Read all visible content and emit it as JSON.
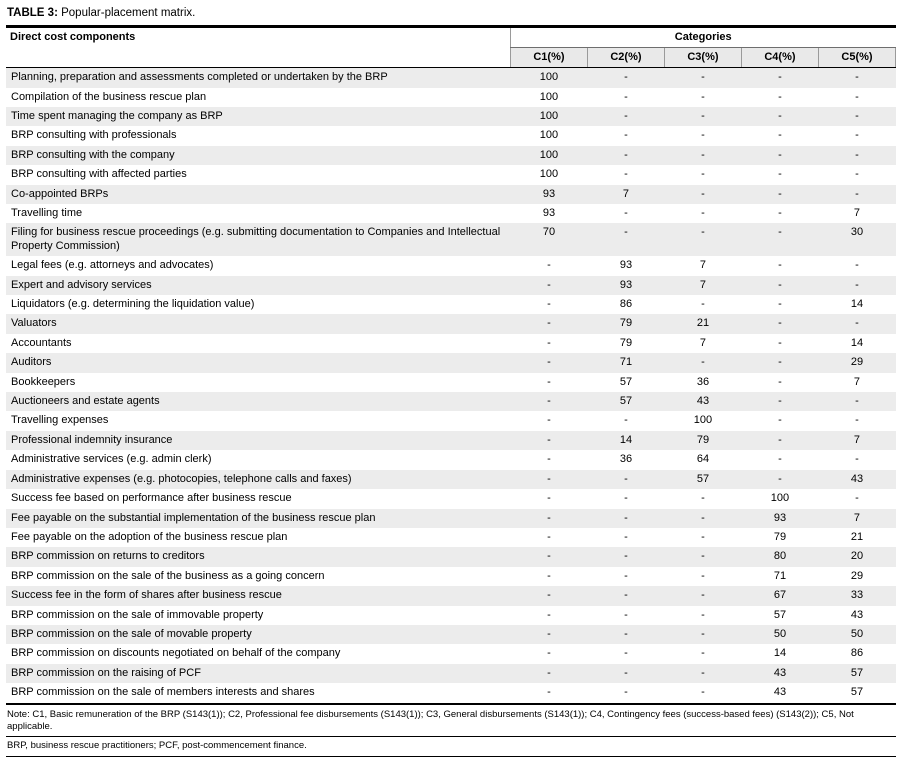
{
  "table": {
    "title_label": "TABLE 3:",
    "title_text": " Popular-placement matrix.",
    "col_header_left": "Direct cost components",
    "col_group_header": "Categories",
    "columns": [
      "C1(%)",
      "C2(%)",
      "C3(%)",
      "C4(%)",
      "C5(%)"
    ],
    "rows": [
      {
        "label": "Planning, preparation and assessments completed or undertaken by the BRP",
        "values": [
          "100",
          "-",
          "-",
          "-",
          "-"
        ]
      },
      {
        "label": "Compilation of the business rescue plan",
        "values": [
          "100",
          "-",
          "-",
          "-",
          "-"
        ]
      },
      {
        "label": "Time spent managing the company as BRP",
        "values": [
          "100",
          "-",
          "-",
          "-",
          "-"
        ]
      },
      {
        "label": "BRP consulting with professionals",
        "values": [
          "100",
          "-",
          "-",
          "-",
          "-"
        ]
      },
      {
        "label": "BRP consulting with the company",
        "values": [
          "100",
          "-",
          "-",
          "-",
          "-"
        ]
      },
      {
        "label": "BRP consulting with affected parties",
        "values": [
          "100",
          "-",
          "-",
          "-",
          "-"
        ]
      },
      {
        "label": "Co-appointed BRPs",
        "values": [
          "93",
          "7",
          "-",
          "-",
          "-"
        ]
      },
      {
        "label": "Travelling time",
        "values": [
          "93",
          "-",
          "-",
          "-",
          "7"
        ]
      },
      {
        "label": "Filing for business rescue proceedings (e.g. submitting documentation to Companies and Intellectual Property Commission)",
        "values": [
          "70",
          "-",
          "-",
          "-",
          "30"
        ]
      },
      {
        "label": "Legal fees (e.g. attorneys and advocates)",
        "values": [
          "-",
          "93",
          "7",
          "-",
          "-"
        ]
      },
      {
        "label": "Expert and advisory services",
        "values": [
          "-",
          "93",
          "7",
          "-",
          "-"
        ]
      },
      {
        "label": "Liquidators (e.g. determining the liquidation value)",
        "values": [
          "-",
          "86",
          "-",
          "-",
          "14"
        ]
      },
      {
        "label": "Valuators",
        "values": [
          "-",
          "79",
          "21",
          "-",
          "-"
        ]
      },
      {
        "label": "Accountants",
        "values": [
          "-",
          "79",
          "7",
          "-",
          "14"
        ]
      },
      {
        "label": "Auditors",
        "values": [
          "-",
          "71",
          "-",
          "-",
          "29"
        ]
      },
      {
        "label": "Bookkeepers",
        "values": [
          "-",
          "57",
          "36",
          "-",
          "7"
        ]
      },
      {
        "label": "Auctioneers and estate agents",
        "values": [
          "-",
          "57",
          "43",
          "-",
          "-"
        ]
      },
      {
        "label": "Travelling expenses",
        "values": [
          "-",
          "-",
          "100",
          "-",
          "-"
        ]
      },
      {
        "label": "Professional indemnity insurance",
        "values": [
          "-",
          "14",
          "79",
          "-",
          "7"
        ]
      },
      {
        "label": "Administrative services (e.g. admin clerk)",
        "values": [
          "-",
          "36",
          "64",
          "-",
          "-"
        ]
      },
      {
        "label": "Administrative expenses (e.g. photocopies, telephone calls and faxes)",
        "values": [
          "-",
          "-",
          "57",
          "-",
          "43"
        ]
      },
      {
        "label": "Success fee based on performance after business rescue",
        "values": [
          "-",
          "-",
          "-",
          "100",
          "-"
        ]
      },
      {
        "label": "Fee payable on the substantial implementation of the business rescue plan",
        "values": [
          "-",
          "-",
          "-",
          "93",
          "7"
        ]
      },
      {
        "label": "Fee payable on the adoption of the business rescue plan",
        "values": [
          "-",
          "-",
          "-",
          "79",
          "21"
        ]
      },
      {
        "label": "BRP commission on returns to creditors",
        "values": [
          "-",
          "-",
          "-",
          "80",
          "20"
        ]
      },
      {
        "label": "BRP commission on the sale of the business as a going concern",
        "values": [
          "-",
          "-",
          "-",
          "71",
          "29"
        ]
      },
      {
        "label": "Success fee in the form of shares after business rescue",
        "values": [
          "-",
          "-",
          "-",
          "67",
          "33"
        ]
      },
      {
        "label": "BRP commission on the sale of immovable property",
        "values": [
          "-",
          "-",
          "-",
          "57",
          "43"
        ]
      },
      {
        "label": "BRP commission on the sale of movable property",
        "values": [
          "-",
          "-",
          "-",
          "50",
          "50"
        ]
      },
      {
        "label": "BRP commission on discounts negotiated on behalf of the company",
        "values": [
          "-",
          "-",
          "-",
          "14",
          "86"
        ]
      },
      {
        "label": "BRP commission on the raising of PCF",
        "values": [
          "-",
          "-",
          "-",
          "43",
          "57"
        ]
      },
      {
        "label": "BRP commission on the sale of members interests and shares",
        "values": [
          "-",
          "-",
          "-",
          "43",
          "57"
        ]
      }
    ],
    "notes": [
      "Note: C1, Basic remuneration of the BRP (S143(1)); C2, Professional fee disbursements (S143(1)); C3, General disbursements (S143(1)); C4, Contingency fees (success-based fees) (S143(2)); C5, Not applicable.",
      "BRP, business rescue practitioners; PCF, post-commencement finance."
    ]
  }
}
